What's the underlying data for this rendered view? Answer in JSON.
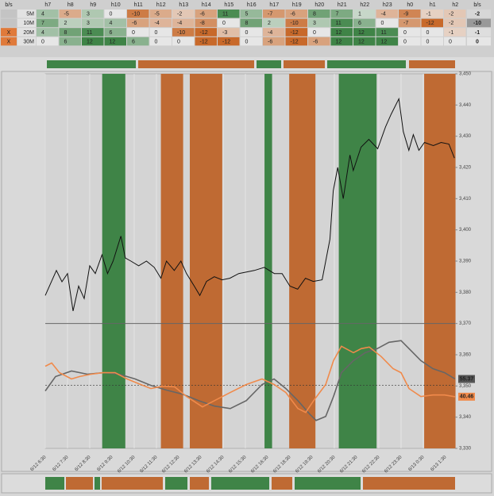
{
  "table": {
    "header": [
      "b/s",
      "h7",
      "h8",
      "h9",
      "h10",
      "h11",
      "h12",
      "h13",
      "h14",
      "h15",
      "h16",
      "h17",
      "h19",
      "h20",
      "h21",
      "h22",
      "h23",
      "h0",
      "h1",
      "h2",
      "b/s"
    ],
    "rows": [
      {
        "label": "5M",
        "values": [
          4,
          -5,
          3,
          0,
          -10,
          -5,
          -2,
          -6,
          11,
          5,
          -7,
          -6,
          8,
          7,
          1,
          -4,
          -9,
          -1,
          -2
        ],
        "total": -2
      },
      {
        "label": "10M",
        "values": [
          7,
          2,
          3,
          4,
          -6,
          -4,
          -4,
          -8,
          0,
          8,
          2,
          -10,
          3,
          11,
          6,
          0,
          -7,
          -12,
          -2
        ],
        "total": -10
      },
      {
        "flag": "X",
        "label": "20M",
        "values": [
          4,
          8,
          11,
          6,
          0,
          0,
          -10,
          -12,
          -3,
          0,
          -4,
          -12,
          0,
          12,
          12,
          11,
          0,
          0,
          -1
        ],
        "total": -1
      },
      {
        "flag": "X",
        "label": "30M",
        "values": [
          0,
          6,
          12,
          12,
          6,
          0,
          0,
          -12,
          -12,
          0,
          -6,
          -12,
          -6,
          12,
          12,
          12,
          0,
          0,
          0
        ],
        "total": 0
      }
    ]
  },
  "chart_data": {
    "type": "line",
    "xlim": [
      0,
      18.43
    ],
    "xticks": [
      {
        "value": 0,
        "label": "6/12 6:30"
      },
      {
        "value": 1,
        "label": "6/12 7:30"
      },
      {
        "value": 2,
        "label": "6/12 8:30"
      },
      {
        "value": 3,
        "label": "6/12 9:30"
      },
      {
        "value": 4,
        "label": "6/12 10:30"
      },
      {
        "value": 5,
        "label": "6/12 11:30"
      },
      {
        "value": 6,
        "label": "6/12 12:30"
      },
      {
        "value": 7,
        "label": "6/12 13:30"
      },
      {
        "value": 8,
        "label": "6/12 14:30"
      },
      {
        "value": 9,
        "label": "6/12 15:30"
      },
      {
        "value": 10,
        "label": "6/12 16:30"
      },
      {
        "value": 11,
        "label": "6/12 18:30"
      },
      {
        "value": 12,
        "label": "6/12 19:30"
      },
      {
        "value": 13,
        "label": "6/12 20:30"
      },
      {
        "value": 14,
        "label": "6/12 21:30"
      },
      {
        "value": 15,
        "label": "6/12 22:30"
      },
      {
        "value": 16,
        "label": "6/12 23:30"
      },
      {
        "value": 17,
        "label": "6/13 0:30"
      },
      {
        "value": 18,
        "label": "6/13 1:30"
      }
    ],
    "ylim": [
      3330,
      3450
    ],
    "yticks": [
      {
        "value": 3330,
        "label": "3,330"
      },
      {
        "value": 3340,
        "label": "3,340"
      },
      {
        "value": 3350,
        "label": "3,350"
      },
      {
        "value": 3360,
        "label": "3,360"
      },
      {
        "value": 3370,
        "label": "3,370"
      },
      {
        "value": 3380,
        "label": "3,380"
      },
      {
        "value": 3390,
        "label": "3,390"
      },
      {
        "value": 3400,
        "label": "3,400"
      },
      {
        "value": 3410,
        "label": "3,410"
      },
      {
        "value": 3420,
        "label": "3,420"
      },
      {
        "value": 3430,
        "label": "3,430"
      },
      {
        "value": 3440,
        "label": "3,440"
      },
      {
        "value": 3450,
        "label": "3,450"
      }
    ],
    "y2lim": [
      -3,
      102
    ],
    "y2_ref": 50,
    "panel_split": 3370,
    "bands": [
      {
        "start": 2.56,
        "end": 3.6,
        "color": "#3f8447"
      },
      {
        "start": 5.2,
        "end": 6.2,
        "color": "#bf6a33"
      },
      {
        "start": 6.5,
        "end": 7.96,
        "color": "#bf6a33"
      },
      {
        "start": 9.86,
        "end": 10.2,
        "color": "#3f8447"
      },
      {
        "start": 10.97,
        "end": 12.15,
        "color": "#bf6a33"
      },
      {
        "start": 13.2,
        "end": 14.9,
        "color": "#3f8447"
      },
      {
        "start": 17.04,
        "end": 18.45,
        "color": "#bf6a33"
      }
    ],
    "series": [
      {
        "color": "#111111",
        "x": [
          0,
          0.5,
          0.75,
          1,
          1.25,
          1.5,
          1.75,
          2,
          2.25,
          2.55,
          2.8,
          3.05,
          3.4,
          3.6,
          3.85,
          4.2,
          4.55,
          4.9,
          5.2,
          5.45,
          5.8,
          6.1,
          6.35,
          6.7,
          6.95,
          7.25,
          7.6,
          7.95,
          8.3,
          8.7,
          9.05,
          9.4,
          9.85,
          10.3,
          10.65,
          11,
          11.35,
          11.7,
          12.05,
          12.45,
          12.8,
          12.95,
          13.15,
          13.4,
          13.7,
          13.85,
          14.2,
          14.55,
          14.95,
          15.3,
          15.55,
          15.9,
          16.1,
          16.35,
          16.55,
          16.8,
          17.05,
          17.45,
          17.8,
          18.15,
          18.4
        ],
        "values": [
          3379,
          3387,
          3383.4,
          3386,
          3374,
          3382,
          3378,
          3388.5,
          3386,
          3392,
          3386,
          3390,
          3398,
          3391,
          3390,
          3388.5,
          3390,
          3388,
          3384.5,
          3390,
          3387,
          3390,
          3386,
          3382,
          3379,
          3383.5,
          3385,
          3384,
          3384.5,
          3386,
          3386.5,
          3387,
          3388,
          3386,
          3386,
          3382,
          3381,
          3384.5,
          3383.5,
          3384,
          3397,
          3412.5,
          3420,
          3410,
          3424,
          3419,
          3426.5,
          3429,
          3426,
          3433,
          3437,
          3442,
          3431.5,
          3425.5,
          3430.5,
          3425.5,
          3428,
          3427,
          3428,
          3427.5,
          3423
        ]
      },
      {
        "color": "#666666",
        "axis": "y2",
        "x": [
          0,
          0.46,
          1.18,
          1.89,
          2.61,
          3.32,
          4.04,
          4.75,
          5.46,
          6.18,
          6.89,
          7.61,
          8.32,
          9.04,
          9.75,
          10.29,
          10.82,
          11.36,
          11.89,
          12.18,
          12.61,
          12.96,
          13.32,
          13.86,
          14.39,
          14.93,
          15.46,
          16,
          16.36,
          16.89,
          17.43,
          17.96,
          18.43
        ],
        "values": [
          45.3,
          57.4,
          62.1,
          59.4,
          60.7,
          59.4,
          55.4,
          50,
          46,
          42.6,
          37.2,
          32.6,
          30.5,
          37.2,
          50.7,
          55.4,
          47.3,
          37.2,
          25.8,
          20.5,
          23.8,
          40.6,
          60.7,
          70.8,
          77.5,
          80.9,
          86.2,
          87.6,
          80.9,
          70.8,
          64.1,
          60.7,
          55.37
        ],
        "label_color": "#555555"
      },
      {
        "color": "#f08a4b",
        "axis": "y2",
        "x": [
          0,
          0.29,
          0.64,
          1.18,
          1.54,
          2.07,
          2.61,
          3.14,
          3.68,
          4.21,
          4.75,
          5.29,
          5.82,
          6.36,
          7.07,
          7.61,
          8.32,
          9.04,
          9.75,
          10.29,
          10.82,
          11.36,
          11.71,
          12.07,
          12.61,
          12.96,
          13.32,
          13.86,
          14.21,
          14.57,
          15.11,
          15.64,
          16,
          16.36,
          16.89,
          17.43,
          17.96,
          18.43
        ],
        "values": [
          66.1,
          68.8,
          60.7,
          55.4,
          57.4,
          59.4,
          60.7,
          60.7,
          55.4,
          51.3,
          47.3,
          49.3,
          48.7,
          40.6,
          31.9,
          37.2,
          44,
          50.7,
          55.4,
          50.7,
          44,
          30.5,
          27.2,
          37.2,
          50.7,
          70.8,
          82.9,
          77.5,
          80.9,
          82.2,
          74.2,
          64.1,
          60.7,
          47.3,
          40.6,
          41.9,
          41.9,
          40.46
        ],
        "label_color": "#f08a4b"
      }
    ]
  }
}
